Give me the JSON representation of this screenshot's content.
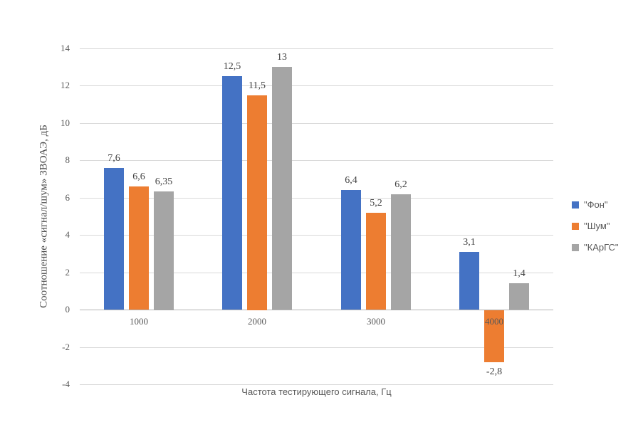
{
  "chart_data": {
    "type": "bar",
    "title": "",
    "categories": [
      "1000",
      "2000",
      "3000",
      "4000"
    ],
    "series": [
      {
        "name": "\"Фон\"",
        "key": "fon",
        "color": "#4472c4",
        "values": [
          7.6,
          12.5,
          6.4,
          3.1
        ],
        "labels": [
          "7,6",
          "12,5",
          "6,4",
          "3,1"
        ]
      },
      {
        "name": "\"Шум\"",
        "key": "shum",
        "color": "#ed7d31",
        "values": [
          6.6,
          11.5,
          5.2,
          -2.8
        ],
        "labels": [
          "6,6",
          "11,5",
          "5,2",
          "-2,8"
        ]
      },
      {
        "name": "\"КАрГС\"",
        "key": "kargs",
        "color": "#a5a5a5",
        "values": [
          6.35,
          13,
          6.2,
          1.4
        ],
        "labels": [
          "6,35",
          "13",
          "6,2",
          "1,4"
        ]
      }
    ],
    "xlabel": "Частота тестирующего сигнала, Гц",
    "ylabel": "Соотношение «сигнал/шум» ЗВОАЭ, дБ",
    "ylim": [
      -4,
      14
    ],
    "yticks": [
      14,
      12,
      10,
      8,
      6,
      4,
      2,
      0,
      -2,
      -4
    ],
    "grid": true,
    "legend_position": "right",
    "colors": {
      "gridline": "#d9d9d9",
      "zero_axis_line": "#b3b3b3",
      "tick_text": "#595959",
      "label_text": "#404040"
    }
  }
}
